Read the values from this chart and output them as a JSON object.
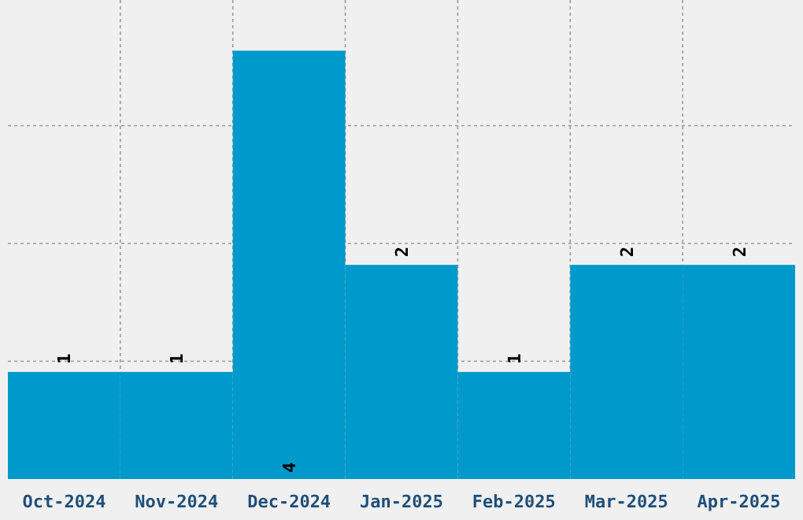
{
  "chart_data": {
    "type": "bar",
    "categories": [
      "Oct-2024",
      "Nov-2024",
      "Dec-2024",
      "Jan-2025",
      "Feb-2025",
      "Mar-2025",
      "Apr-2025"
    ],
    "values": [
      1,
      1,
      4,
      2,
      1,
      2,
      2
    ],
    "color": "#0099cc",
    "tick_labels": "x",
    "grid": true,
    "data_labels": true
  }
}
